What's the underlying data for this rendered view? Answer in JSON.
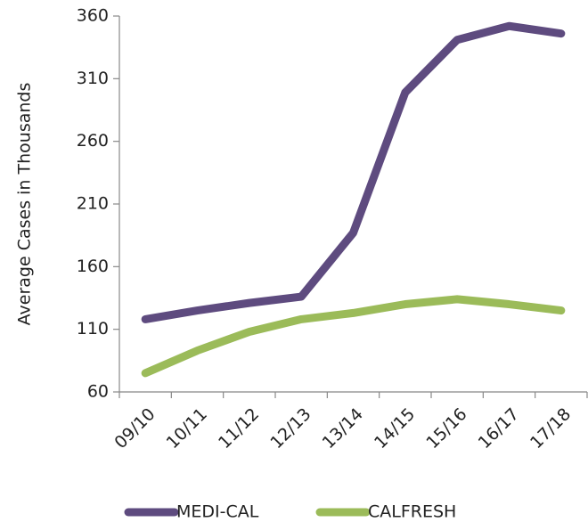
{
  "chart_data": {
    "type": "line",
    "y_label": "Average Cases in Thousands",
    "categories": [
      "09/10",
      "10/11",
      "11/12",
      "12/13",
      "13/14",
      "14/15",
      "15/16",
      "16/17",
      "17/18"
    ],
    "series": [
      {
        "name": "MEDI-CAL",
        "color": "#5e4b7f",
        "values": [
          118,
          125,
          131,
          136,
          187,
          299,
          341,
          352,
          346
        ]
      },
      {
        "name": "CALFRESH",
        "color": "#9bbb59",
        "values": [
          75,
          93,
          108,
          118,
          123,
          130,
          134,
          130,
          125
        ]
      }
    ],
    "ylim": [
      60,
      360
    ],
    "yticks": [
      60,
      110,
      160,
      210,
      260,
      310,
      360
    ],
    "grid": false,
    "legend": "bottom"
  }
}
